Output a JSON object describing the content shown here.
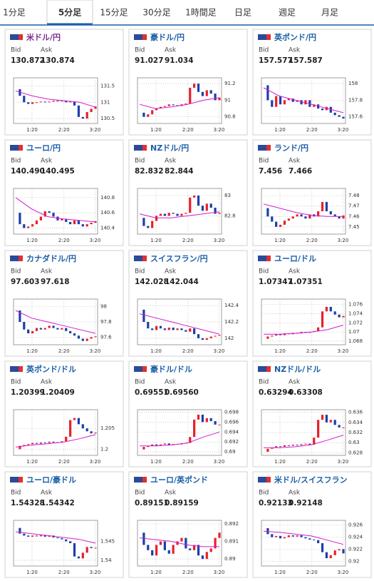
{
  "tabs": [
    "1分足",
    "5分足",
    "15分足",
    "30分足",
    "1時間足",
    "日足",
    "週足",
    "月足"
  ],
  "active_tab": 1,
  "labels": {
    "bid": "Bid",
    "ask": "Ask"
  },
  "colors": {
    "up": "#e8202a",
    "down": "#1a3fa8",
    "ma": "#d21bd2",
    "grid": "#bbbbbb"
  },
  "chart_data": [
    {
      "type": "candlestick",
      "title": "米ドル/円",
      "title_color": "#7b2c8f",
      "bid": "130.872",
      "ask": "130.874",
      "ylim": [
        130.35,
        131.75
      ],
      "yticks": [
        130.5,
        131,
        131.5
      ],
      "xticks": [
        "1:20",
        "2:20",
        "3:20"
      ],
      "close": [
        131.4,
        131.2,
        131.0,
        130.95,
        131.0,
        131.0,
        131.02,
        131.0,
        131.02,
        131.05,
        131.03,
        131.05,
        131.0,
        131.02,
        130.9,
        130.55,
        130.5,
        130.7,
        130.8,
        130.87
      ],
      "ma": [
        131.35,
        131.2,
        131.1,
        131.05,
        131.0,
        130.85
      ]
    },
    {
      "type": "candlestick",
      "title": "豪ドル/円",
      "title_color": "#1a5fa8",
      "bid": "91.027",
      "ask": "91.034",
      "ylim": [
        90.72,
        91.27
      ],
      "yticks": [
        90.8,
        91,
        91.2
      ],
      "xticks": [
        "1:20",
        "2:20",
        "3:20"
      ],
      "close": [
        90.85,
        90.8,
        90.83,
        90.88,
        90.9,
        90.92,
        90.93,
        90.95,
        90.94,
        90.93,
        90.95,
        90.96,
        91.15,
        91.2,
        91.1,
        91.05,
        91.12,
        91.08,
        91.0,
        91.03
      ],
      "ma": [
        90.95,
        90.9,
        90.92,
        90.95,
        91.0,
        91.03
      ]
    },
    {
      "type": "candlestick",
      "title": "英ポンド/円",
      "title_color": "#1a5fa8",
      "bid": "157.577",
      "ask": "157.587",
      "ylim": [
        157.52,
        158.07
      ],
      "yticks": [
        157.6,
        157.8,
        158
      ],
      "xticks": [
        "1:20",
        "2:20",
        "3:20"
      ],
      "close": [
        157.98,
        157.8,
        157.72,
        157.85,
        157.75,
        157.8,
        157.82,
        157.78,
        157.8,
        157.75,
        157.8,
        157.72,
        157.75,
        157.7,
        157.68,
        157.72,
        157.65,
        157.62,
        157.6,
        157.58
      ],
      "ma": [
        157.95,
        157.85,
        157.8,
        157.75,
        157.7,
        157.65
      ]
    },
    {
      "type": "candlestick",
      "title": "ユーロ/円",
      "title_color": "#1a5fa8",
      "bid": "140.490",
      "ask": "140.495",
      "ylim": [
        140.32,
        140.92
      ],
      "yticks": [
        140.4,
        140.6,
        140.8
      ],
      "xticks": [
        "1:20",
        "2:20",
        "3:20"
      ],
      "close": [
        140.6,
        140.45,
        140.4,
        140.42,
        140.45,
        140.5,
        140.55,
        140.62,
        140.6,
        140.55,
        140.5,
        140.52,
        140.48,
        140.45,
        140.5,
        140.45,
        140.42,
        140.45,
        140.47,
        140.49
      ],
      "ma": [
        140.8,
        140.65,
        140.55,
        140.52,
        140.5,
        140.48
      ]
    },
    {
      "type": "candlestick",
      "title": "NZドル/円",
      "title_color": "#1a5fa8",
      "bid": "82.832",
      "ask": "82.844",
      "ylim": [
        82.62,
        83.07
      ],
      "yticks": [
        82.8,
        83
      ],
      "xticks": [
        "1:20",
        "2:20",
        "3:20"
      ],
      "close": [
        82.78,
        82.7,
        82.68,
        82.75,
        82.8,
        82.82,
        82.8,
        82.83,
        82.82,
        82.8,
        82.82,
        82.83,
        82.98,
        83.0,
        82.9,
        82.85,
        82.92,
        82.88,
        82.82,
        82.83
      ],
      "ma": [
        82.82,
        82.78,
        82.78,
        82.8,
        82.82,
        82.84
      ]
    },
    {
      "type": "candlestick",
      "title": "ランド/円",
      "title_color": "#1a5fa8",
      "bid": "7.456",
      "ask": "7.466",
      "ylim": [
        7.443,
        7.487
      ],
      "yticks": [
        7.45,
        7.46,
        7.47,
        7.48
      ],
      "xticks": [
        "1:20",
        "2:20",
        "3:20"
      ],
      "close": [
        7.468,
        7.46,
        7.455,
        7.45,
        7.452,
        7.456,
        7.458,
        7.46,
        7.462,
        7.46,
        7.458,
        7.462,
        7.46,
        7.465,
        7.474,
        7.465,
        7.462,
        7.46,
        7.458,
        7.461
      ],
      "ma": [
        7.472,
        7.468,
        7.464,
        7.461,
        7.46,
        7.46
      ]
    },
    {
      "type": "candlestick",
      "title": "カナダドル/円",
      "title_color": "#1a5fa8",
      "bid": "97.603",
      "ask": "97.618",
      "ylim": [
        97.5,
        98.1
      ],
      "yticks": [
        97.6,
        97.8,
        98
      ],
      "xticks": [
        "1:20",
        "2:20",
        "3:20"
      ],
      "close": [
        97.95,
        97.8,
        97.7,
        97.65,
        97.68,
        97.72,
        97.7,
        97.72,
        97.75,
        97.72,
        97.7,
        97.72,
        97.68,
        97.65,
        97.62,
        97.58,
        97.55,
        97.58,
        97.6,
        97.61
      ],
      "ma": [
        97.95,
        97.85,
        97.8,
        97.75,
        97.7,
        97.65
      ]
    },
    {
      "type": "candlestick",
      "title": "スイスフラン/円",
      "title_color": "#1a5fa8",
      "bid": "142.028",
      "ask": "142.044",
      "ylim": [
        141.92,
        142.48
      ],
      "yticks": [
        142,
        142.2,
        142.4
      ],
      "xticks": [
        "1:20",
        "2:20",
        "3:20"
      ],
      "close": [
        142.35,
        142.2,
        142.12,
        142.1,
        142.15,
        142.12,
        142.1,
        142.13,
        142.1,
        142.12,
        142.1,
        142.08,
        142.12,
        142.05,
        142.0,
        141.98,
        142.0,
        142.02,
        142.03,
        142.04
      ],
      "ma": [
        142.3,
        142.25,
        142.2,
        142.15,
        142.1,
        142.05
      ]
    },
    {
      "type": "candlestick",
      "title": "ユーロ/ドル",
      "title_color": "#1a5fa8",
      "bid": "1.07347",
      "ask": "1.07351",
      "ylim": [
        1.0672,
        1.0772
      ],
      "yticks": [
        1.068,
        1.07,
        1.072,
        1.074,
        1.076
      ],
      "xticks": [
        "1:20",
        "2:20",
        "3:20"
      ],
      "close": [
        1.0685,
        1.069,
        1.0692,
        1.0695,
        1.0693,
        1.0697,
        1.0695,
        1.0698,
        1.0697,
        1.07,
        1.0698,
        1.07,
        1.0702,
        1.071,
        1.0745,
        1.0755,
        1.0745,
        1.0738,
        1.0732,
        1.0735
      ],
      "ma": [
        1.0695,
        1.0695,
        1.0697,
        1.07,
        1.0705,
        1.0715
      ]
    },
    {
      "type": "candlestick",
      "title": "英ポンド/ドル",
      "title_color": "#1a5fa8",
      "bid": "1.20399",
      "ask": "1.20409",
      "ylim": [
        1.1985,
        1.2095
      ],
      "yticks": [
        1.2,
        1.205
      ],
      "xticks": [
        "1:20",
        "2:20",
        "3:20"
      ],
      "close": [
        1.2,
        1.2008,
        1.201,
        1.2012,
        1.2015,
        1.2013,
        1.2016,
        1.2015,
        1.2018,
        1.2016,
        1.2017,
        1.2019,
        1.203,
        1.207,
        1.2075,
        1.206,
        1.205,
        1.2043,
        1.2038,
        1.204
      ],
      "ma": [
        1.2005,
        1.201,
        1.2013,
        1.2017,
        1.2025,
        1.2035
      ]
    },
    {
      "type": "candlestick",
      "title": "豪ドル/ドル",
      "title_color": "#1a5fa8",
      "bid": "0.69551",
      "ask": "0.69560",
      "ylim": [
        0.6893,
        0.6985
      ],
      "yticks": [
        0.69,
        0.692,
        0.694,
        0.696,
        0.698
      ],
      "xticks": [
        "1:20",
        "2:20",
        "3:20"
      ],
      "close": [
        0.6905,
        0.691,
        0.6912,
        0.6915,
        0.6913,
        0.6915,
        0.6917,
        0.6914,
        0.6916,
        0.6915,
        0.6917,
        0.6918,
        0.693,
        0.6965,
        0.6975,
        0.696,
        0.6968,
        0.6962,
        0.6955,
        0.6955
      ],
      "ma": [
        0.6912,
        0.6912,
        0.6914,
        0.6918,
        0.693,
        0.694
      ]
    },
    {
      "type": "candlestick",
      "title": "NZドル/ドル",
      "title_color": "#1a5fa8",
      "bid": "0.63294",
      "ask": "0.63308",
      "ylim": [
        0.6275,
        0.6365
      ],
      "yticks": [
        0.628,
        0.63,
        0.632,
        0.634,
        0.636
      ],
      "xticks": [
        "1:20",
        "2:20",
        "3:20"
      ],
      "close": [
        0.6282,
        0.6288,
        0.629,
        0.6293,
        0.6292,
        0.6295,
        0.6294,
        0.6296,
        0.6295,
        0.6297,
        0.6298,
        0.6296,
        0.631,
        0.6345,
        0.6355,
        0.634,
        0.6345,
        0.6335,
        0.633,
        0.633
      ],
      "ma": [
        0.629,
        0.629,
        0.6292,
        0.6296,
        0.6305,
        0.6315
      ]
    },
    {
      "type": "candlestick",
      "title": "ユーロ/豪ドル",
      "title_color": "#1a5fa8",
      "bid": "1.54328",
      "ask": "1.54342",
      "ylim": [
        1.5385,
        1.5505
      ],
      "yticks": [
        1.54,
        1.545
      ],
      "xticks": [
        "1:20",
        "2:20",
        "3:20"
      ],
      "close": [
        1.5485,
        1.547,
        1.5465,
        1.5462,
        1.5465,
        1.5463,
        1.5466,
        1.5462,
        1.5465,
        1.546,
        1.5458,
        1.5455,
        1.545,
        1.5445,
        1.541,
        1.5405,
        1.542,
        1.5435,
        1.5432,
        1.5433
      ],
      "ma": [
        1.5475,
        1.547,
        1.5465,
        1.546,
        1.5455,
        1.5445
      ]
    },
    {
      "type": "candlestick",
      "title": "ユーロ/英ポンド",
      "title_color": "#1a5fa8",
      "bid": "0.89151",
      "ask": "0.89159",
      "ylim": [
        0.8896,
        0.8922
      ],
      "yticks": [
        0.89,
        0.891,
        0.892
      ],
      "xticks": [
        "1:20",
        "2:20",
        "3:20"
      ],
      "close": [
        0.8915,
        0.8908,
        0.8905,
        0.8902,
        0.8908,
        0.891,
        0.8905,
        0.8903,
        0.8908,
        0.891,
        0.8912,
        0.8906,
        0.8905,
        0.8908,
        0.8902,
        0.89,
        0.8904,
        0.8906,
        0.8912,
        0.8915
      ],
      "ma": [
        0.8912,
        0.8911,
        0.891,
        0.8908,
        0.8907,
        0.8907
      ]
    },
    {
      "type": "candlestick",
      "title": "米ドル/スイスフラン",
      "title_color": "#1a5fa8",
      "bid": "0.92133",
      "ask": "0.92148",
      "ylim": [
        0.9192,
        0.9268
      ],
      "yticks": [
        0.92,
        0.922,
        0.924,
        0.926
      ],
      "xticks": [
        "1:20",
        "2:20",
        "3:20"
      ],
      "close": [
        0.9255,
        0.9245,
        0.924,
        0.9242,
        0.9238,
        0.924,
        0.9243,
        0.9241,
        0.9243,
        0.924,
        0.9238,
        0.9236,
        0.9235,
        0.923,
        0.9215,
        0.9205,
        0.921,
        0.9218,
        0.922,
        0.9213
      ],
      "ma": [
        0.925,
        0.9248,
        0.9245,
        0.9242,
        0.9235,
        0.9228
      ]
    }
  ]
}
